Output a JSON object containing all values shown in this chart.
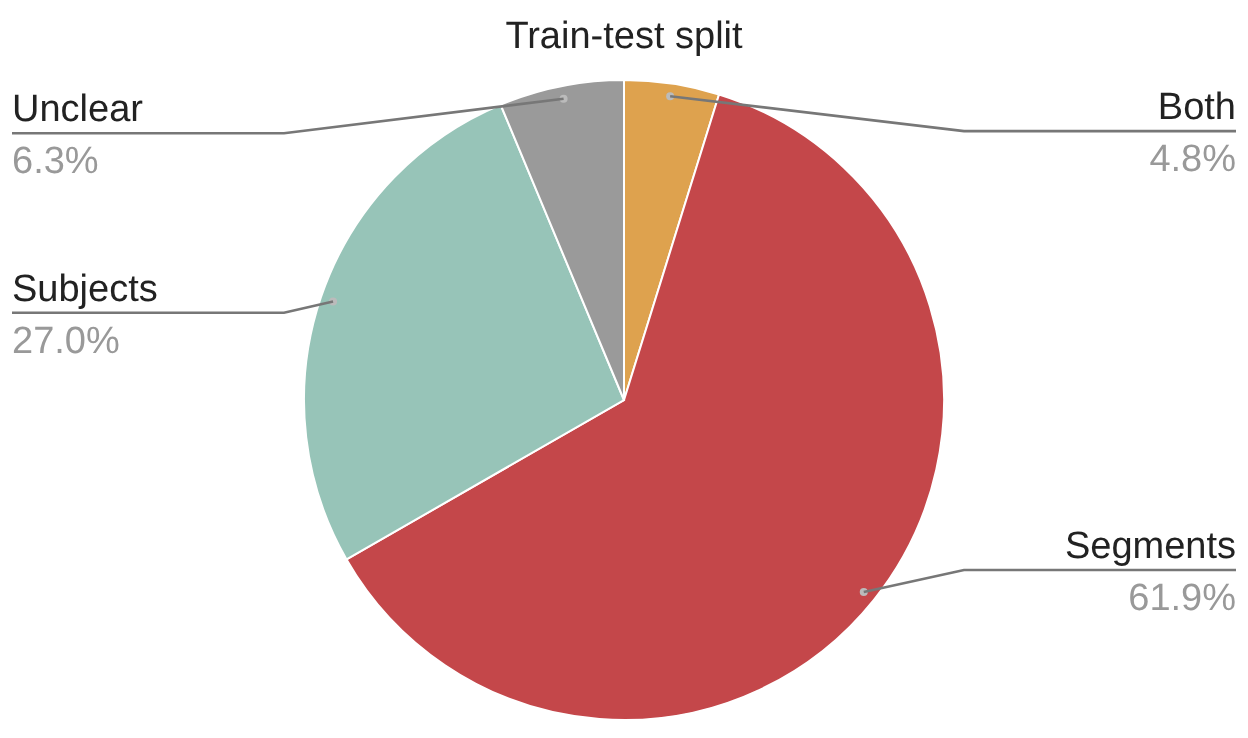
{
  "chart_data": {
    "type": "pie",
    "title": "Train-test split",
    "categories": [
      "Both",
      "Segments",
      "Subjects",
      "Unclear"
    ],
    "values": [
      4.8,
      61.9,
      27.0,
      6.3
    ],
    "colors": [
      "#dea24e",
      "#c4474a",
      "#97c4b8",
      "#9a9a9a"
    ],
    "value_labels": [
      "4.8%",
      "61.9%",
      "27.0%",
      "6.3%"
    ]
  }
}
